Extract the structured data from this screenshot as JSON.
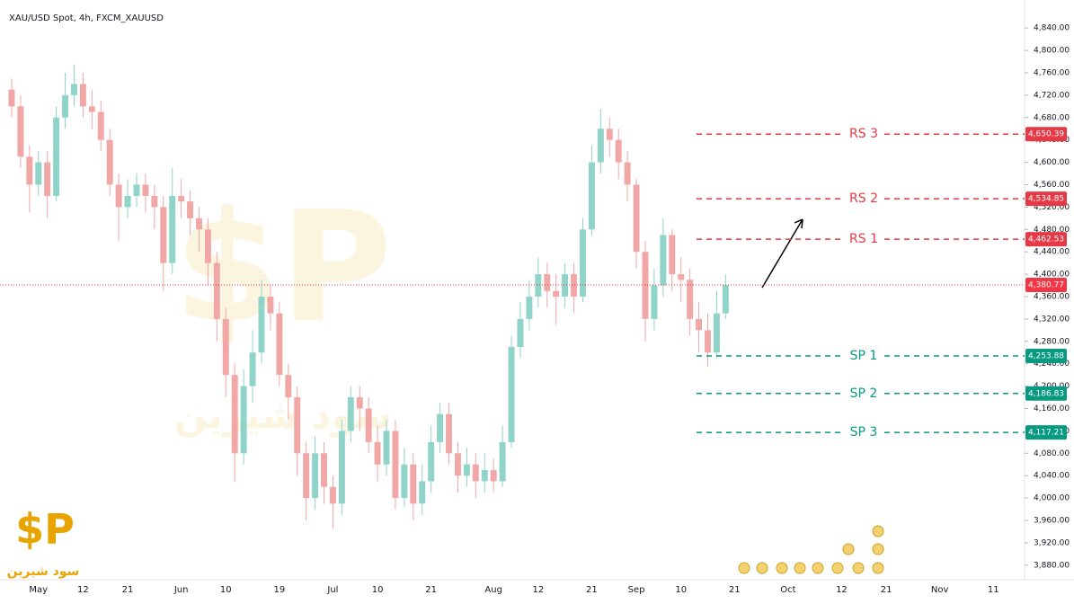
{
  "chart_data": {
    "type": "candlestick",
    "title": "XAU/USD Spot, 4h, FXCM_XAUUSD",
    "categories": [
      null,
      null,
      null,
      "May",
      null,
      null,
      null,
      null,
      "12",
      null,
      null,
      null,
      null,
      "21",
      null,
      null,
      null,
      null,
      null,
      "Jun",
      null,
      null,
      null,
      null,
      "10",
      null,
      null,
      null,
      null,
      null,
      "19",
      null,
      null,
      null,
      null,
      null,
      "Jul",
      null,
      null,
      null,
      null,
      "10",
      null,
      null,
      null,
      null,
      null,
      "21",
      null,
      null,
      null,
      null,
      null,
      null,
      "Aug",
      null,
      null,
      null,
      null,
      "12",
      null,
      null,
      null,
      null,
      null,
      "21",
      null,
      null,
      null,
      null,
      "Sep",
      null,
      null,
      null,
      null,
      "10",
      null,
      null,
      null,
      null,
      null,
      "21",
      null,
      null,
      null,
      null,
      null,
      "Oct",
      null,
      null,
      null,
      null,
      null,
      "12",
      null,
      null,
      null,
      null,
      "21",
      null,
      null,
      null,
      null,
      null,
      "Nov",
      null,
      null,
      null,
      null,
      null,
      "11",
      null,
      null,
      null
    ],
    "open": [
      4730,
      4700,
      4610,
      4560,
      4600,
      4540,
      4680,
      4720,
      4740,
      4700,
      4690,
      4640,
      4560,
      4520,
      4540,
      4560,
      4540,
      4520,
      4420,
      4540,
      4530,
      4500,
      4480,
      4420,
      4320,
      4220,
      4080,
      4200,
      4260,
      4360,
      4330,
      4220,
      4180,
      4080,
      4000,
      4080,
      4020,
      3990,
      4120,
      4180,
      4160,
      4100,
      4060,
      4120,
      4000,
      4060,
      3990,
      4030,
      4100,
      4150,
      4080,
      4040,
      4060,
      4030,
      4050,
      4030,
      4100,
      4270,
      4320,
      4360,
      4400,
      4370,
      4360,
      4400,
      4360,
      4480,
      4600,
      4660,
      4640,
      4600,
      4560,
      4440,
      4320,
      4380,
      4470,
      4400,
      4390,
      4320,
      4300,
      4260,
      4330,
      null,
      null,
      null,
      null,
      null,
      null,
      null,
      null,
      null,
      null,
      null,
      null,
      null,
      null,
      null,
      null,
      null,
      null,
      null,
      null,
      null,
      null,
      null,
      null,
      null,
      null,
      null,
      null,
      null,
      null,
      null,
      null,
      null
    ],
    "high": [
      4750,
      4720,
      4630,
      4620,
      4620,
      4700,
      4760,
      4775,
      4760,
      4730,
      4710,
      4660,
      4580,
      4570,
      4580,
      4580,
      4560,
      4540,
      4590,
      4570,
      4550,
      4520,
      4500,
      4440,
      4340,
      4240,
      4230,
      4300,
      4390,
      4380,
      4350,
      4240,
      4200,
      4100,
      4110,
      4100,
      4040,
      4140,
      4200,
      4200,
      4180,
      4130,
      4140,
      4140,
      4090,
      4080,
      4060,
      4130,
      4170,
      4170,
      4100,
      4090,
      4080,
      4080,
      4070,
      4130,
      4290,
      4350,
      4390,
      4430,
      4420,
      4400,
      4420,
      4420,
      4500,
      4630,
      4695,
      4680,
      4660,
      4620,
      4570,
      4460,
      4410,
      4500,
      4480,
      4430,
      4410,
      4350,
      4330,
      4370,
      4400,
      null,
      null,
      null,
      null,
      null,
      null,
      null,
      null,
      null,
      null,
      null,
      null,
      null,
      null,
      null,
      null,
      null,
      null,
      null,
      null,
      null,
      null,
      null,
      null,
      null,
      null,
      null,
      null,
      null,
      null,
      null,
      null,
      null
    ],
    "low": [
      4680,
      4590,
      4510,
      4540,
      4500,
      4530,
      4660,
      4700,
      4680,
      4660,
      4620,
      4540,
      4460,
      4500,
      4520,
      4510,
      4480,
      4370,
      4400,
      4500,
      4470,
      4440,
      4380,
      4280,
      4180,
      4030,
      4060,
      4170,
      4240,
      4300,
      4200,
      4140,
      4040,
      3960,
      3980,
      3990,
      3945,
      3970,
      4100,
      4120,
      4080,
      4030,
      4040,
      3980,
      3985,
      3960,
      3970,
      4010,
      4080,
      4060,
      4010,
      4020,
      4000,
      4010,
      4010,
      4020,
      4090,
      4250,
      4300,
      4340,
      4340,
      4310,
      4340,
      4330,
      4350,
      4470,
      4580,
      4610,
      4570,
      4530,
      4410,
      4280,
      4300,
      4360,
      4370,
      4350,
      4290,
      4260,
      4235,
      4250,
      4320,
      null,
      null,
      null,
      null,
      null,
      null,
      null,
      null,
      null,
      null,
      null,
      null,
      null,
      null,
      null,
      null,
      null,
      null,
      null,
      null,
      null,
      null,
      null,
      null,
      null,
      null,
      null,
      null,
      null,
      null,
      null,
      null,
      null
    ],
    "close": [
      4700,
      4610,
      4560,
      4600,
      4540,
      4680,
      4720,
      4740,
      4700,
      4690,
      4640,
      4560,
      4520,
      4540,
      4560,
      4540,
      4520,
      4420,
      4540,
      4530,
      4500,
      4480,
      4420,
      4320,
      4220,
      4080,
      4200,
      4260,
      4360,
      4330,
      4220,
      4180,
      4080,
      4000,
      4080,
      4020,
      3990,
      4120,
      4180,
      4160,
      4100,
      4060,
      4120,
      4000,
      4060,
      3990,
      4030,
      4100,
      4150,
      4080,
      4040,
      4060,
      4030,
      4050,
      4030,
      4100,
      4270,
      4320,
      4360,
      4400,
      4370,
      4360,
      4400,
      4360,
      4480,
      4600,
      4660,
      4640,
      4600,
      4560,
      4440,
      4320,
      4380,
      4470,
      4400,
      4390,
      4320,
      4300,
      4260,
      4330,
      4380.77,
      null,
      null,
      null,
      null,
      null,
      null,
      null,
      null,
      null,
      null,
      null,
      null,
      null,
      null,
      null,
      null,
      null,
      null,
      null,
      null,
      null,
      null,
      null,
      null,
      null,
      null,
      null,
      null,
      null,
      null,
      null,
      null,
      null
    ],
    "up_color": "#8fd3c9",
    "down_color": "#f2a7a7",
    "ylim": [
      3854,
      4874
    ],
    "yticks": [
      {
        "value": 4840,
        "label": "4,840.00"
      },
      {
        "value": 4800,
        "label": "4,800.00"
      },
      {
        "value": 4760,
        "label": "4,760.00"
      },
      {
        "value": 4720,
        "label": "4,720.00"
      },
      {
        "value": 4680,
        "label": "4,680.00"
      },
      {
        "value": 4640,
        "label": "4,640.00"
      },
      {
        "value": 4600,
        "label": "4,600.00"
      },
      {
        "value": 4560,
        "label": "4,560.00"
      },
      {
        "value": 4520,
        "label": "4,520.00"
      },
      {
        "value": 4480,
        "label": "4,480.00"
      },
      {
        "value": 4440,
        "label": "4,440.00"
      },
      {
        "value": 4400,
        "label": "4,400.00"
      },
      {
        "value": 4360,
        "label": "4,360.00"
      },
      {
        "value": 4320,
        "label": "4,320.00"
      },
      {
        "value": 4280,
        "label": "4,280.00"
      },
      {
        "value": 4240,
        "label": "4,240.00"
      },
      {
        "value": 4200,
        "label": "4,200.00"
      },
      {
        "value": 4160,
        "label": "4,160.00"
      },
      {
        "value": 4120,
        "label": "4,120.00"
      },
      {
        "value": 4080,
        "label": "4,080.00"
      },
      {
        "value": 4040,
        "label": "4,040.00"
      },
      {
        "value": 4000,
        "label": "4,000.00"
      },
      {
        "value": 3960,
        "label": "3,960.00"
      },
      {
        "value": 3920,
        "label": "3,920.00"
      },
      {
        "value": 3880,
        "label": "3,880.00"
      }
    ],
    "last_price": {
      "value": 4380.77,
      "value_label": "4,380.77",
      "color": "#f23645"
    },
    "levels": [
      {
        "label": "RS 3",
        "value": 4650.39,
        "value_label": "4,650.39",
        "color": "#e53945"
      },
      {
        "label": "RS 2",
        "value": 4534.85,
        "value_label": "4,534.85",
        "color": "#e53945"
      },
      {
        "label": "RS 1",
        "value": 4462.53,
        "value_label": "4,462.53",
        "color": "#e53945"
      },
      {
        "label": "SP 1",
        "value": 4253.88,
        "value_label": "4,253.88",
        "color": "#089981"
      },
      {
        "label": "SP 2",
        "value": 4186.83,
        "value_label": "4,186.83",
        "color": "#089981"
      },
      {
        "label": "SP 3",
        "value": 4117.21,
        "value_label": "4,117.21",
        "color": "#089981"
      }
    ]
  },
  "logo": {
    "symbol": "$P",
    "text": "سود شیرین"
  }
}
